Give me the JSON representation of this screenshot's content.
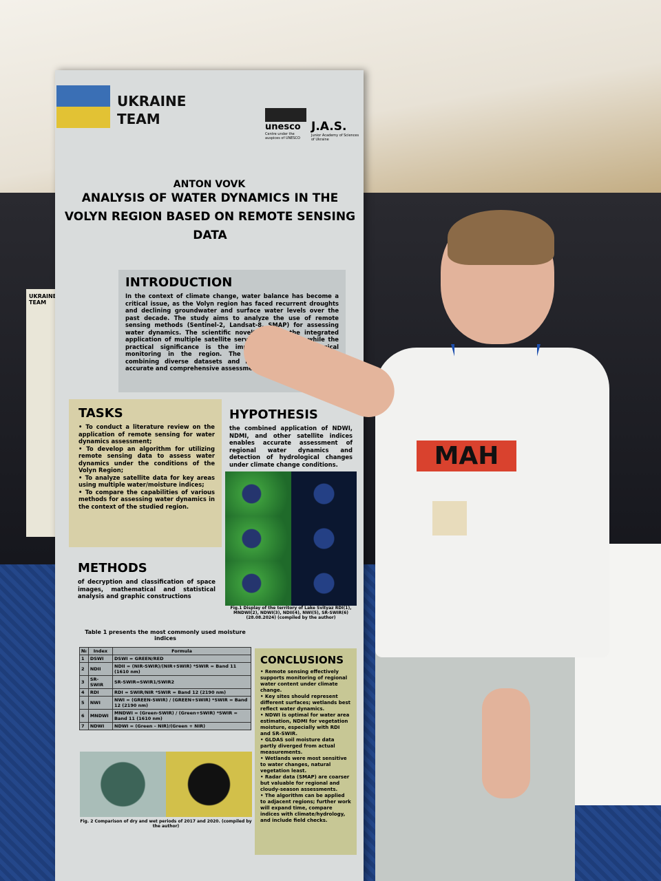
{
  "poster": {
    "team": "UKRAINE TEAM",
    "logos": {
      "unesco": "unesco",
      "unesco_sub": "Centre under the auspices of UNESCO",
      "jas": "J.A.S.",
      "jas_sub": "Junior Academy of Sciences of Ukraine"
    },
    "author": "ANTON VOVK",
    "title": "ANALYSIS OF WATER DYNAMICS IN THE VOLYN REGION BASED ON REMOTE SENSING DATA",
    "introduction": {
      "heading": "INTRODUCTION",
      "text": "In the context of climate change, water balance has become a critical issue, as the Volyn region has faced recurrent droughts and declining groundwater and surface water levels over the past decade. The study aims to analyze the use of remote sensing methods (Sentinel-2, Landsat-8, SMAP) for assessing water dynamics. The scientific novelty lies in the integrated application of multiple satellite services and indices, while the practical significance is the improvement of hydrological monitoring in the region. The hypothesis assumes that combining diverse datasets and methods provides a more accurate and comprehensive assessment of water resources."
    },
    "tasks": {
      "heading": "TASKS",
      "items": [
        "To conduct a literature review on the application of remote sensing for water dynamics assessment;",
        "To develop an algorithm for utilizing remote sensing data to assess water dynamics under the conditions of the Volyn Region;",
        "To analyze satellite data for key areas using multiple water/moisture indices;",
        "To compare the capabilities of various methods for assessing water dynamics in the context of the studied region."
      ]
    },
    "hypothesis": {
      "heading": "HYPOTHESIS",
      "text": "the combined application of NDWI, NDMI, and other satellite indices enables accurate assessment of regional water dynamics and detection of hydrological changes under climate change conditions."
    },
    "fig1_caption": "Fig.1 Display of the territory of Lake Svityaz RDI(1), MNDWI(2), NDWI(3), NDII(4), NWI(5), SR-SWIR(6) (28.08.2024) (compiled by the author)",
    "methods": {
      "heading": "METHODS",
      "text": "of decryption and classification of space images, mathematical and statistical analysis and graphic constructions"
    },
    "table": {
      "caption": "Table 1 presents the most commonly used moisture indices",
      "headers": [
        "№",
        "Index",
        "Formula"
      ],
      "rows": [
        [
          "1",
          "DSWI",
          "DSWI = GREEN/RED"
        ],
        [
          "2",
          "NDII",
          "NDII = (NIR-SWIR)/(NIR+SWIR) *SWIR = Band 11 (1610 nm)"
        ],
        [
          "3",
          "SR-SWIR",
          "SR-SWIR=SWIR1/SWIR2"
        ],
        [
          "4",
          "RDI",
          "RDI = SWIR/NIR *SWIR = Band 12 (2190 nm)"
        ],
        [
          "5",
          "NWI",
          "NWI = (GREEN-SWIR) / (GREEN+SWIR) *SWIR = Band 12 (2190 nm)"
        ],
        [
          "6",
          "MNDWI",
          "MNDWI = (Green-SWIR) / (Green+SWIR) *SWIR = Band 11 (1610 nm)"
        ],
        [
          "7",
          "NDWI",
          "NDWI = (Green – NIR)/(Green + NIR)"
        ]
      ]
    },
    "fig2_caption": "Fig. 2 Comparison of dry and wet periods of 2017 and 2020. (compiled by the author)",
    "conclusions": {
      "heading": "CONCLUSIONS",
      "items": [
        "Remote sensing effectively supports monitoring of regional water content under climate change.",
        "Key sites should represent different surfaces; wetlands best reflect water dynamics.",
        "NDWI is optimal for water area estimation, NDMI for vegetation moisture, especially with RDI and SR-SWIR.",
        "GLDAS soil moisture data partly diverged from actual measurements.",
        "Wetlands were most sensitive to water changes, natural vegetation least.",
        "Radar data (SMAP) are coarser but valuable for regional and cloudy-season assessments.",
        "The algorithm can be applied to adjacent regions; further work will expand time, compare indices with climate/hydrology, and include field checks."
      ]
    }
  },
  "side_poster": {
    "team": "UKRAINE TEAM"
  },
  "shirt_logo": "МАН",
  "colors": {
    "flag_blue": "#3a6fb5",
    "flag_yellow": "#e2c234",
    "conclusions_bg": "#c7c795",
    "tasks_bg": "#d8d0a8"
  }
}
